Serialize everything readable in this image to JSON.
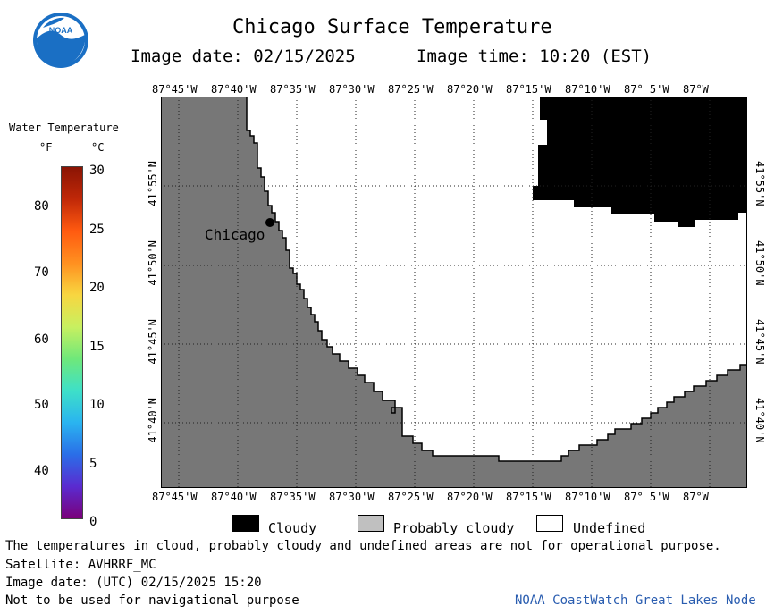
{
  "header": {
    "title": "Chicago Surface Temperature",
    "image_date": "Image date: 02/15/2025",
    "image_time": "Image time: 10:20 (EST)"
  },
  "colorbar": {
    "title": "Water Temperature",
    "unit_f": "°F",
    "unit_c": "°C",
    "f_ticks": [
      "80",
      "70",
      "60",
      "50",
      "40"
    ],
    "c_ticks": [
      "30",
      "25",
      "20",
      "15",
      "10",
      "5",
      "0"
    ],
    "c_range": [
      0,
      30
    ],
    "colors": [
      "#7a007a",
      "#5a2bd0",
      "#2a6ee8",
      "#2ab4f0",
      "#3ee0c8",
      "#6fe87a",
      "#c8f060",
      "#f8d640",
      "#ff9020",
      "#ff5a10",
      "#c02808",
      "#8a1404"
    ]
  },
  "map": {
    "lon_labels": [
      "87°45'W",
      "87°40'W",
      "87°35'W",
      "87°30'W",
      "87°25'W",
      "87°20'W",
      "87°15'W",
      "87°10'W",
      "87° 5'W",
      "87°W"
    ],
    "lat_labels": [
      "41°55'N",
      "41°50'N",
      "41°45'N",
      "41°40'N"
    ],
    "city_label": "Chicago",
    "land_color": "#777777",
    "cloud_color": "#000000"
  },
  "legend": {
    "cloudy": "Cloudy",
    "probably_cloudy": "Probably cloudy",
    "undefined": "Undefined",
    "cloudy_color": "#000000",
    "probably_cloudy_color": "#c0c0c0",
    "undefined_color": "#ffffff"
  },
  "footer": {
    "disclaimer": "The temperatures in cloud, probably cloudy and undefined areas are not for operational purpose.",
    "satellite": "Satellite: AVHRRF_MC",
    "utc_date": "Image date: (UTC) 02/15/2025  15:20",
    "nav_warning": "Not to be used for navigational purpose",
    "credit": "NOAA CoastWatch Great Lakes Node"
  },
  "logo": {
    "text": "NOAA"
  }
}
